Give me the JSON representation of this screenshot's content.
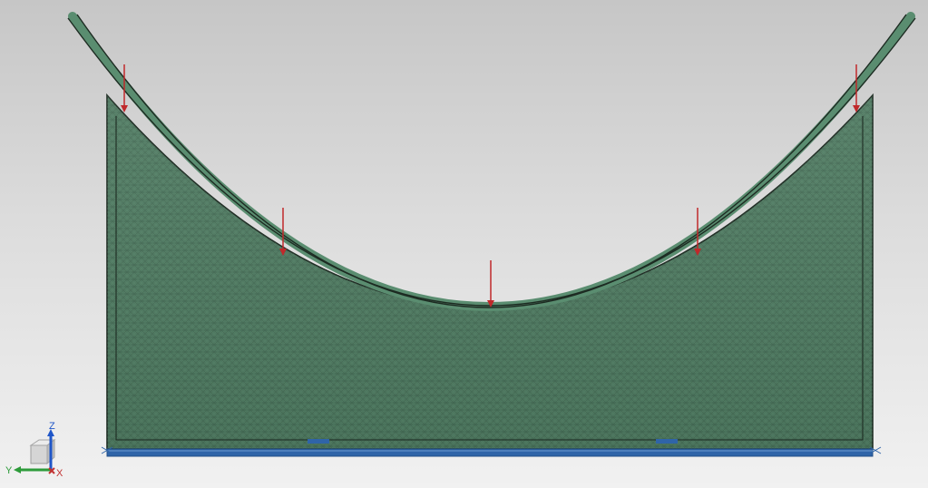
{
  "viewport": {
    "background_top": "#c6c6c6",
    "background_bottom": "#f1f1f1"
  },
  "model": {
    "mesh_color": "#4f7b62",
    "mesh_line_color": "#2f4f3d",
    "saddle_arc_color": "#5a8d70",
    "edge_color": "#1d2b22"
  },
  "loads": {
    "color": "#c0292b",
    "count": 5
  },
  "constraints": {
    "color": "#2f64a8",
    "pads": 2
  },
  "triad": {
    "z_label": "Z",
    "y_label": "Y",
    "x_label": "X",
    "z_color": "#1f56c8",
    "y_color": "#2d9b3a",
    "x_color": "#c23232"
  }
}
